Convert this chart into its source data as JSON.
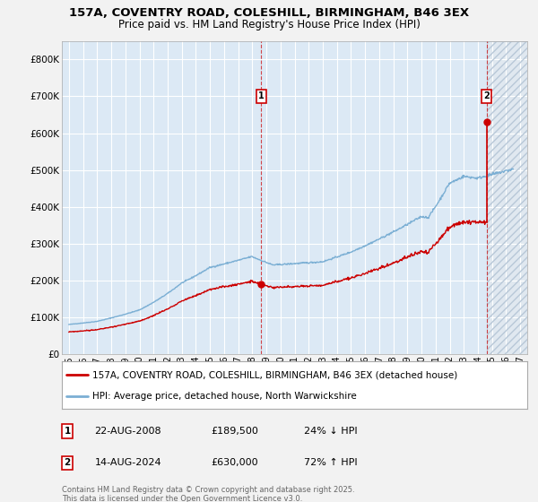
{
  "title_line1": "157A, COVENTRY ROAD, COLESHILL, BIRMINGHAM, B46 3EX",
  "title_line2": "Price paid vs. HM Land Registry's House Price Index (HPI)",
  "bg_color": "#dce9f5",
  "fig_color": "#f2f2f2",
  "hatch_color": "#c8d8e8",
  "grid_color": "#ffffff",
  "red_line_color": "#cc0000",
  "blue_line_color": "#7bafd4",
  "marker1_x": 2008.644,
  "marker1_y": 189500,
  "marker2_x": 2024.619,
  "marker2_y": 630000,
  "marker1_label": "1",
  "marker2_label": "2",
  "legend_red": "157A, COVENTRY ROAD, COLESHILL, BIRMINGHAM, B46 3EX (detached house)",
  "legend_blue": "HPI: Average price, detached house, North Warwickshire",
  "footnote": "Contains HM Land Registry data © Crown copyright and database right 2025.\nThis data is licensed under the Open Government Licence v3.0.",
  "ylim": [
    0,
    850000
  ],
  "yticks": [
    0,
    100000,
    200000,
    300000,
    400000,
    500000,
    600000,
    700000,
    800000
  ],
  "ytick_labels": [
    "£0",
    "£100K",
    "£200K",
    "£300K",
    "£400K",
    "£500K",
    "£600K",
    "£700K",
    "£800K"
  ],
  "xlim_left": 1994.5,
  "xlim_right": 2027.5,
  "xticks": [
    1995,
    1996,
    1997,
    1998,
    1999,
    2000,
    2001,
    2002,
    2003,
    2004,
    2005,
    2006,
    2007,
    2008,
    2009,
    2010,
    2011,
    2012,
    2013,
    2014,
    2015,
    2016,
    2017,
    2018,
    2019,
    2020,
    2021,
    2022,
    2023,
    2024,
    2025,
    2026,
    2027
  ]
}
